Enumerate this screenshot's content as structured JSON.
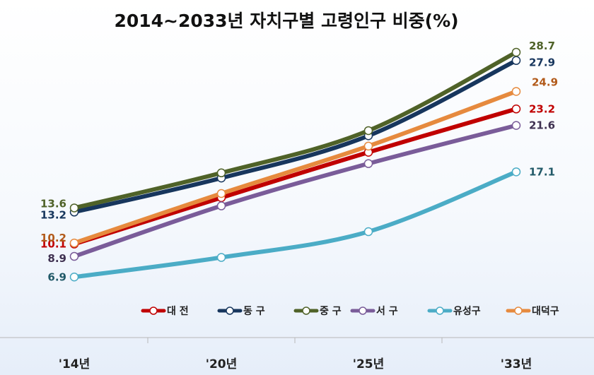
{
  "chart_data": {
    "type": "line",
    "title": "2014~2033년 자치구별 고령인구 비중(%)",
    "categories": [
      "'14년",
      "'20년",
      "'25년",
      "'33년"
    ],
    "ylim": [
      5,
      30
    ],
    "grid": false,
    "legend_position": "bottom-right",
    "series": [
      {
        "name": "대 전",
        "color": "#C00000",
        "values": [
          10.1,
          14.6,
          19.0,
          23.2
        ],
        "labels": [
          "10.1",
          "",
          "",
          "23.2"
        ],
        "label_color": "#C00000"
      },
      {
        "name": "동 구",
        "color": "#17365D",
        "values": [
          13.2,
          16.5,
          20.6,
          27.9
        ],
        "labels": [
          "13.2",
          "",
          "",
          "27.9"
        ],
        "label_color": "#17365D"
      },
      {
        "name": "중 구",
        "color": "#4F6228",
        "values": [
          13.6,
          17.0,
          21.1,
          28.7
        ],
        "labels": [
          "13.6",
          "",
          "",
          "28.7"
        ],
        "label_color": "#4F6228"
      },
      {
        "name": "서 구",
        "color": "#7A5C99",
        "values": [
          8.9,
          13.8,
          17.9,
          21.6
        ],
        "labels": [
          "8.9",
          "",
          "",
          "21.6"
        ],
        "label_color": "#3F3151"
      },
      {
        "name": "유성구",
        "color": "#4BACC6",
        "values": [
          6.9,
          8.8,
          11.3,
          17.1
        ],
        "labels": [
          "6.9",
          "",
          "",
          "17.1"
        ],
        "label_color": "#215968"
      },
      {
        "name": "대덕구",
        "color": "#E68A3E",
        "values": [
          10.2,
          15.0,
          19.6,
          24.9
        ],
        "labels": [
          "10.2",
          "",
          "",
          "24.9"
        ],
        "label_color": "#B25A1A"
      }
    ]
  }
}
